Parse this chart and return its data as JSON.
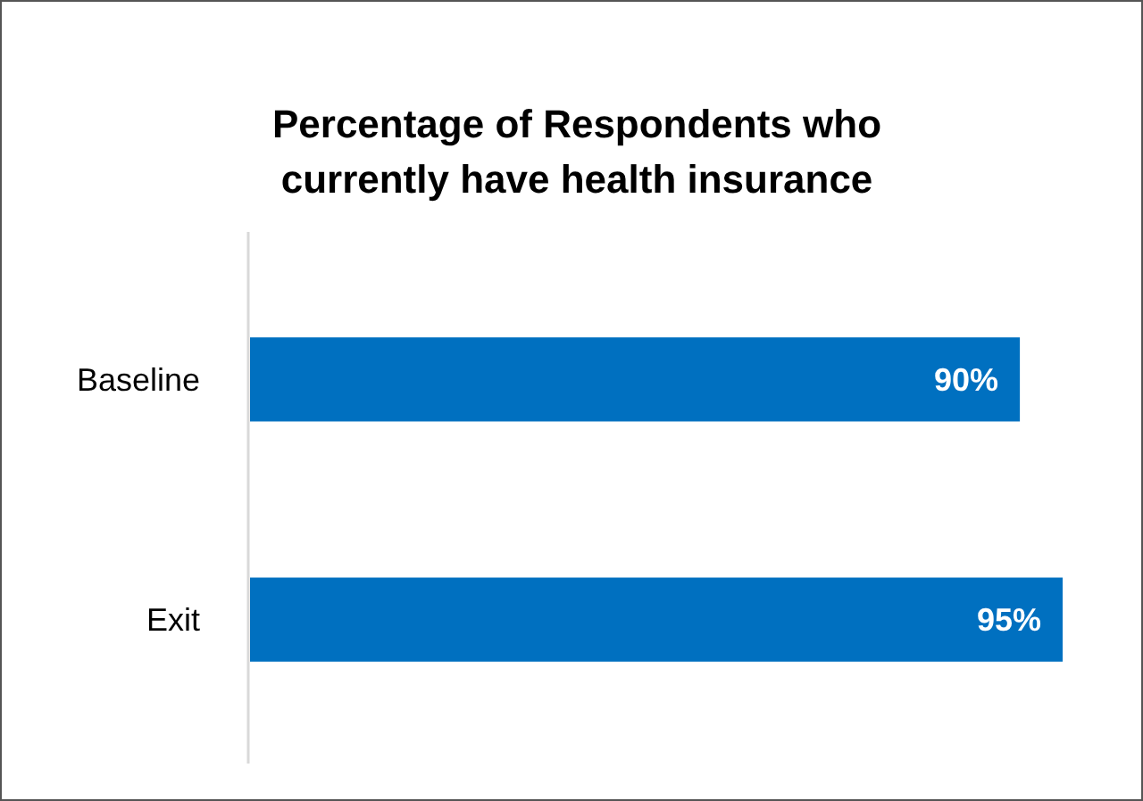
{
  "chart_data": {
    "type": "bar",
    "orientation": "horizontal",
    "title": "Percentage of Respondents who currently have health insurance",
    "categories": [
      "Baseline",
      "Exit"
    ],
    "values": [
      90,
      95
    ],
    "value_labels": [
      "90%",
      "95%"
    ],
    "color": "#0070c0",
    "tick_labels": "y"
  }
}
